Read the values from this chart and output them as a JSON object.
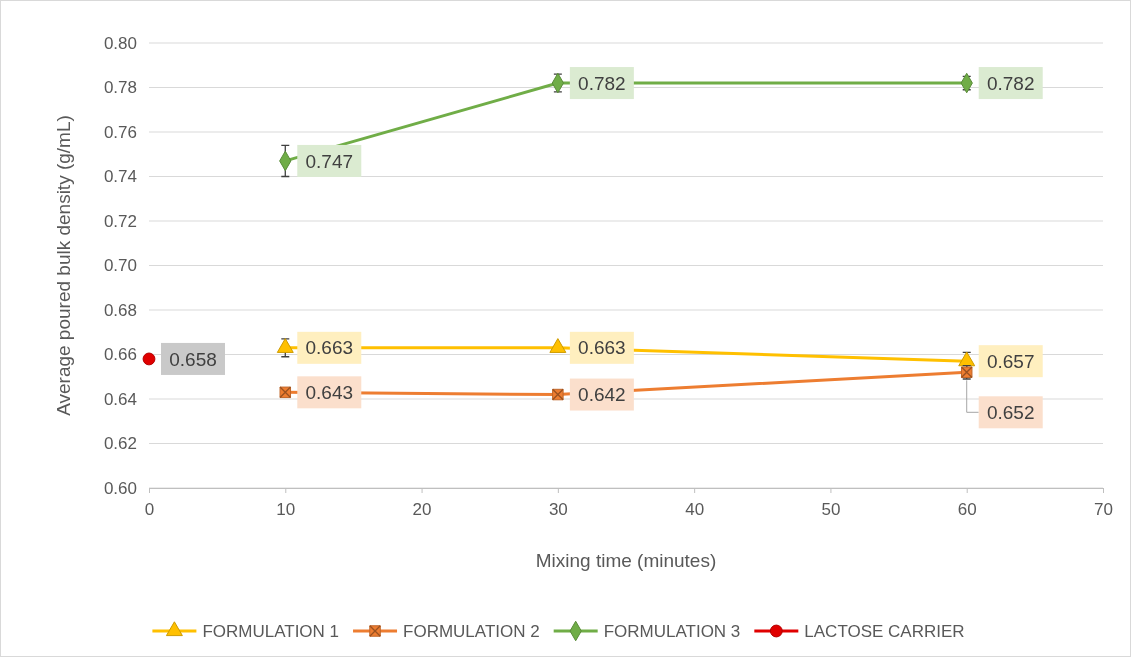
{
  "chart_data": {
    "type": "line",
    "xlabel": "Mixing time (minutes)",
    "ylabel": "Average poured bulk density (g/mL)",
    "xlim": [
      0,
      70
    ],
    "xticks": [
      0,
      10,
      20,
      30,
      40,
      50,
      60,
      70
    ],
    "ylim": [
      0.6,
      0.8
    ],
    "yticks": [
      {
        "value": 0.6,
        "label": "0.60"
      },
      {
        "value": 0.62,
        "label": "0.62"
      },
      {
        "value": 0.64,
        "label": "0.64"
      },
      {
        "value": 0.66,
        "label": "0.66"
      },
      {
        "value": 0.68,
        "label": "0.68"
      },
      {
        "value": 0.7,
        "label": "0.70"
      },
      {
        "value": 0.72,
        "label": "0.72"
      },
      {
        "value": 0.74,
        "label": "0.74"
      },
      {
        "value": 0.76,
        "label": "0.76"
      },
      {
        "value": 0.78,
        "label": "0.78"
      },
      {
        "value": 0.8,
        "label": "0.80"
      }
    ],
    "grid": "y",
    "legend": "bottom",
    "data_labels": true,
    "series": [
      {
        "name": "FORMULATION 1",
        "color": "#ffc000",
        "marker": "triangle",
        "x": [
          10,
          30,
          60
        ],
        "values": [
          0.663,
          0.663,
          0.657
        ],
        "errors": [
          0.004,
          null,
          0.004
        ]
      },
      {
        "name": "FORMULATION 2",
        "color": "#ed7d31",
        "marker": "square",
        "x": [
          10,
          30,
          60
        ],
        "values": [
          0.643,
          0.642,
          0.652
        ],
        "errors": [
          null,
          null,
          0.003
        ]
      },
      {
        "name": "FORMULATION 3",
        "color": "#70ad47",
        "marker": "diamond",
        "x": [
          10,
          30,
          60
        ],
        "values": [
          0.747,
          0.782,
          0.782
        ],
        "errors": [
          0.007,
          0.004,
          0.003
        ]
      },
      {
        "name": "LACTOSE CARRIER",
        "color": "#e00000",
        "marker": "circle",
        "x": [
          0
        ],
        "values": [
          0.658
        ]
      }
    ]
  }
}
